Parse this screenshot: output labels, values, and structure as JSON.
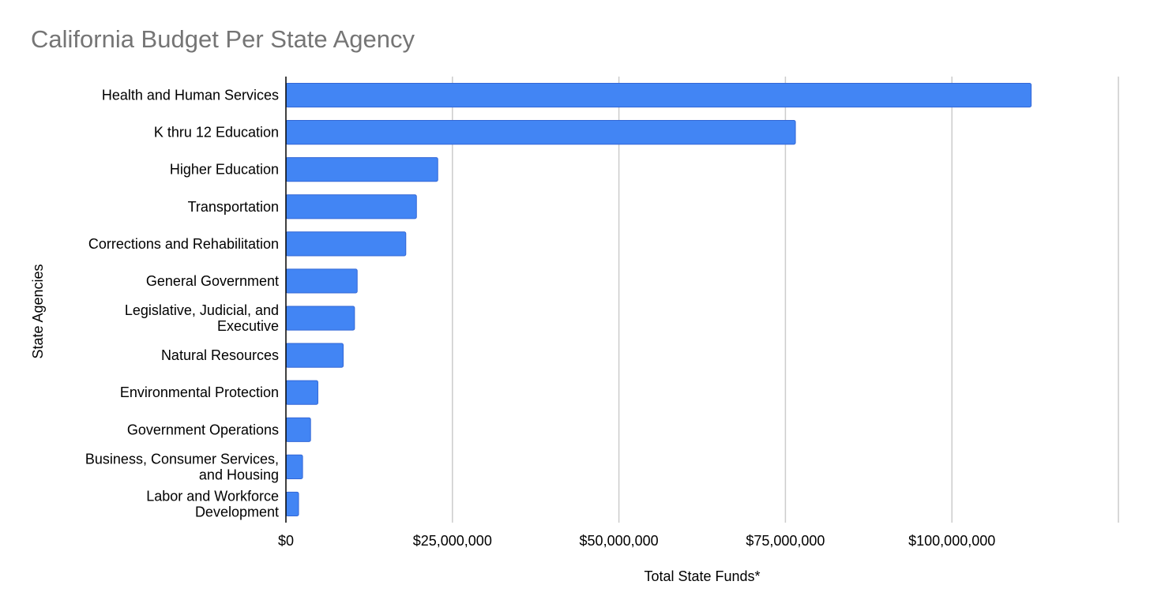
{
  "chart_data": {
    "type": "bar",
    "orientation": "horizontal",
    "title": "California Budget Per State Agency",
    "xlabel": "Total State Funds*",
    "ylabel": "State Agencies",
    "categories": [
      "Health and Human Services",
      "K thru 12 Education",
      "Higher Education",
      "Transportation",
      "Corrections and Rehabilitation",
      "General Government",
      "Legislative, Judicial, and Executive",
      "Natural Resources",
      "Environmental Protection",
      "Government Operations",
      "Business, Consumer Services, and Housing",
      "Labor and Workforce Development"
    ],
    "category_lines": [
      [
        "Health and Human Services"
      ],
      [
        "K thru 12 Education"
      ],
      [
        "Higher Education"
      ],
      [
        "Transportation"
      ],
      [
        "Corrections and Rehabilitation"
      ],
      [
        "General Government"
      ],
      [
        "Legislative, Judicial, and",
        "Executive"
      ],
      [
        "Natural Resources"
      ],
      [
        "Environmental Protection"
      ],
      [
        "Government Operations"
      ],
      [
        "Business, Consumer Services,",
        "and Housing"
      ],
      [
        "Labor and Workforce",
        "Development"
      ]
    ],
    "values": [
      111900000,
      76500000,
      22800000,
      19600000,
      18000000,
      10700000,
      10300000,
      8600000,
      4800000,
      3700000,
      2500000,
      1900000
    ],
    "xlim": [
      0,
      125000000
    ],
    "xticks": [
      0,
      25000000,
      50000000,
      75000000,
      100000000,
      125000000
    ],
    "xtick_labels": [
      "$0",
      "$25,000,000",
      "$50,000,000",
      "$75,000,000",
      "$100,000,000",
      ""
    ],
    "grid": true,
    "bar_color": "#4285F4",
    "bar_border_color": "#3367D6",
    "grid_color": "#CCCCCC",
    "axis_color": "#000000",
    "title_color": "#757575"
  }
}
